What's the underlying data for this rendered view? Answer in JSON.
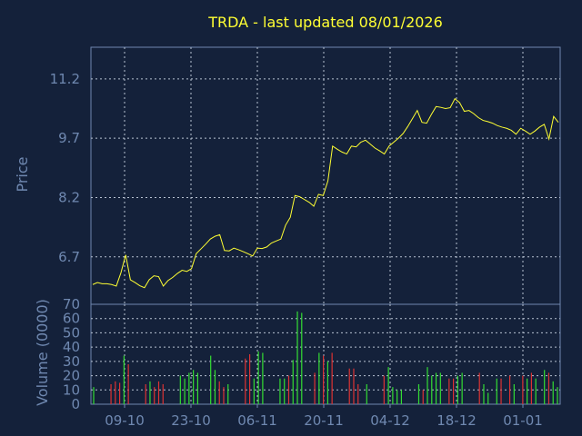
{
  "colors": {
    "background": "#14213a",
    "axis": "#6f88b0",
    "grid": "#b8c2d2",
    "title": "#ffff33",
    "label": "#6f88b0",
    "price_line": "#ffff33",
    "volume_up": "#33dd33",
    "volume_down": "#dd3333"
  },
  "chart_data": [
    {
      "type": "line",
      "title": "TRDA - last updated 08/01/2026",
      "ylabel": "Price",
      "ylim": [
        5.5,
        12.0
      ],
      "yticks": [
        "6.7",
        "8.2",
        "9.7",
        "11.2"
      ],
      "x_tick_labels": [
        "09-10",
        "23-10",
        "06-11",
        "20-11",
        "04-12",
        "18-12",
        "01-01"
      ],
      "grid": true,
      "series": [
        {
          "values": [
            6.0,
            6.05,
            6.02,
            6.02,
            6.0,
            5.96,
            6.3,
            6.75,
            6.12,
            6.05,
            5.97,
            5.92,
            6.12,
            6.22,
            6.2,
            5.96,
            6.1,
            6.18,
            6.28,
            6.36,
            6.33,
            6.4,
            6.78,
            6.9,
            7.02,
            7.15,
            7.22,
            7.26,
            6.86,
            6.85,
            6.92,
            6.88,
            6.83,
            6.78,
            6.72,
            6.92,
            6.91,
            6.95,
            7.05,
            7.1,
            7.15,
            7.5,
            7.7,
            8.25,
            8.22,
            8.15,
            8.08,
            7.98,
            8.28,
            8.25,
            8.62,
            9.5,
            9.42,
            9.35,
            9.3,
            9.5,
            9.48,
            9.6,
            9.65,
            9.55,
            9.45,
            9.38,
            9.3,
            9.5,
            9.6,
            9.7,
            9.82,
            10.0,
            10.2,
            10.4,
            10.1,
            10.08,
            10.3,
            10.5,
            10.48,
            10.45,
            10.47,
            10.7,
            10.6,
            10.38,
            10.4,
            10.32,
            10.22,
            10.15,
            10.12,
            10.08,
            10.02,
            9.98,
            9.95,
            9.9,
            9.8,
            9.95,
            9.88,
            9.8,
            9.88,
            9.98,
            10.05,
            9.68,
            10.25,
            10.1
          ]
        }
      ]
    },
    {
      "type": "bar",
      "ylabel": "Volume (0000)",
      "ylim": [
        0,
        70
      ],
      "yticks": [
        "0",
        "10",
        "20",
        "30",
        "40",
        "50",
        "60",
        "70"
      ],
      "grid": true,
      "series": [
        {
          "values": [
            12,
            0,
            0,
            0,
            14,
            16,
            15,
            34,
            28,
            0,
            0,
            0,
            14,
            16,
            12,
            16,
            14,
            0,
            0,
            0,
            20,
            18,
            22,
            24,
            22,
            0,
            0,
            34,
            24,
            16,
            12,
            14,
            0,
            0,
            0,
            32,
            35,
            18,
            37,
            36,
            0,
            0,
            0,
            18,
            18,
            20,
            31,
            65,
            64,
            0,
            0,
            22,
            36,
            34,
            30,
            36,
            0,
            0,
            0,
            25,
            25,
            14,
            0,
            14,
            0,
            0,
            0,
            20,
            26,
            12,
            10,
            10,
            0,
            0,
            0,
            14,
            10,
            26,
            20,
            22,
            22,
            0,
            18,
            18,
            20,
            22,
            0,
            0,
            0,
            22,
            14,
            8,
            0,
            18,
            18,
            0,
            20,
            14,
            0,
            20,
            18,
            22,
            18,
            0,
            24,
            22,
            16,
            12
          ],
          "directions": [
            "u",
            "u",
            "u",
            "u",
            "d",
            "d",
            "d",
            "u",
            "d",
            "u",
            "u",
            "u",
            "d",
            "u",
            "d",
            "d",
            "d",
            "u",
            "u",
            "u",
            "u",
            "u",
            "u",
            "u",
            "u",
            "u",
            "u",
            "u",
            "u",
            "d",
            "d",
            "u",
            "u",
            "u",
            "u",
            "d",
            "d",
            "u",
            "u",
            "u",
            "u",
            "u",
            "u",
            "u",
            "u",
            "d",
            "u",
            "u",
            "u",
            "u",
            "u",
            "d",
            "u",
            "d",
            "u",
            "d",
            "u",
            "u",
            "u",
            "d",
            "d",
            "d",
            "u",
            "u",
            "u",
            "u",
            "u",
            "d",
            "u",
            "u",
            "u",
            "u",
            "u",
            "u",
            "u",
            "u",
            "d",
            "u",
            "u",
            "u",
            "u",
            "u",
            "d",
            "d",
            "u",
            "u",
            "u",
            "u",
            "u",
            "d",
            "u",
            "u",
            "u",
            "u",
            "d",
            "u",
            "d",
            "u",
            "u",
            "d",
            "u",
            "d",
            "u",
            "u",
            "u",
            "d",
            "u",
            "u"
          ]
        }
      ]
    }
  ]
}
